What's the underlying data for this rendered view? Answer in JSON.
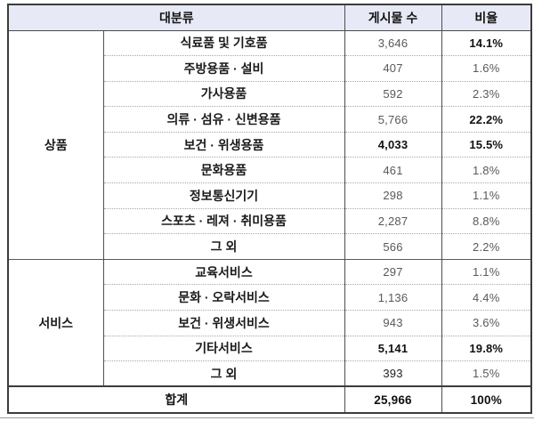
{
  "table": {
    "headers": {
      "category": "대분류",
      "count": "게시물 수",
      "ratio": "비율"
    },
    "groups": [
      {
        "label": "상품",
        "rows": [
          {
            "label": "식료품 및 기호품",
            "count": "3,646",
            "ratio": "14.1%"
          },
          {
            "label": "주방용품 · 설비",
            "count": "407",
            "ratio": "1.6%"
          },
          {
            "label": "가사용품",
            "count": "592",
            "ratio": "2.3%"
          },
          {
            "label": "의류 · 섬유 · 신변용품",
            "count": "5,766",
            "ratio": "22.2%"
          },
          {
            "label": "보건 · 위생용품",
            "count": "4,033",
            "ratio": "15.5%"
          },
          {
            "label": "문화용품",
            "count": "461",
            "ratio": "1.8%"
          },
          {
            "label": "정보통신기기",
            "count": "298",
            "ratio": "1.1%"
          },
          {
            "label": "스포츠 · 레져 · 취미용품",
            "count": "2,287",
            "ratio": "8.8%"
          },
          {
            "label": "그 외",
            "count": "566",
            "ratio": "2.2%"
          }
        ]
      },
      {
        "label": "서비스",
        "rows": [
          {
            "label": "교육서비스",
            "count": "297",
            "ratio": "1.1%"
          },
          {
            "label": "문화 · 오락서비스",
            "count": "1,136",
            "ratio": "4.4%"
          },
          {
            "label": "보건 · 위생서비스",
            "count": "943",
            "ratio": "3.6%"
          },
          {
            "label": "기타서비스",
            "count": "5,141",
            "ratio": "19.8%"
          },
          {
            "label": "그 외",
            "count": "393",
            "ratio": "1.5%"
          }
        ]
      }
    ],
    "total": {
      "label": "합계",
      "count": "25,966",
      "ratio": "100%"
    }
  },
  "colors": {
    "header_bg": "#e7eaf6",
    "outer_border": "#3c3c3c",
    "number_text": "#595959",
    "emphasis_text": "#111111"
  }
}
